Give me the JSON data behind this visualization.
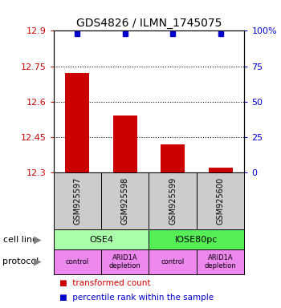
{
  "title": "GDS4826 / ILMN_1745075",
  "samples": [
    "GSM925597",
    "GSM925598",
    "GSM925599",
    "GSM925600"
  ],
  "bar_values": [
    12.72,
    12.54,
    12.42,
    12.32
  ],
  "bar_base": 12.3,
  "bar_color": "#cc0000",
  "percentile_values": [
    98,
    98,
    98,
    98
  ],
  "percentile_color": "#0000cc",
  "ylim_left": [
    12.3,
    12.9
  ],
  "ylim_right": [
    0,
    100
  ],
  "yticks_left": [
    12.3,
    12.45,
    12.6,
    12.75,
    12.9
  ],
  "yticks_right": [
    0,
    25,
    50,
    75,
    100
  ],
  "ytick_labels_right": [
    "0",
    "25",
    "50",
    "75",
    "100%"
  ],
  "dotted_lines": [
    12.45,
    12.6,
    12.75
  ],
  "cell_line_labels": [
    "OSE4",
    "IOSE80pc"
  ],
  "cell_line_spans": [
    [
      0,
      2
    ],
    [
      2,
      4
    ]
  ],
  "cell_line_colors": [
    "#aaffaa",
    "#55ee55"
  ],
  "protocol_labels": [
    "control",
    "ARID1A\ndepletion",
    "control",
    "ARID1A\ndepletion"
  ],
  "protocol_color": "#ee88ee",
  "sample_box_color": "#cccccc",
  "left_label_color": "#cc0000",
  "right_label_color": "#0000cc",
  "bar_width": 0.5,
  "legend_red_label": "transformed count",
  "legend_blue_label": "percentile rank within the sample"
}
